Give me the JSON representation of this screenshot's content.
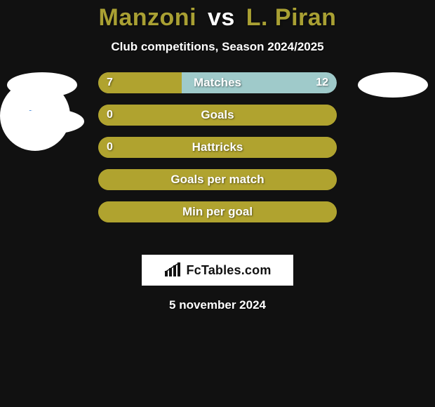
{
  "title": {
    "player1": "Manzoni",
    "vs": "vs",
    "player2": "L. Piran",
    "player1_color": "#a9a033",
    "player2_color": "#a9a033"
  },
  "subtitle": "Club competitions, Season 2024/2025",
  "colors": {
    "background": "#111111",
    "bar_fill": "#b0a32f",
    "bar_empty": "#97c6c6",
    "bar_empty_alt": "#b0a32f",
    "text": "#ffffff"
  },
  "bars": [
    {
      "label": "Matches",
      "left_value": "7",
      "right_value": "12",
      "left_pct": 35,
      "right_pct": 65,
      "left_color": "#b0a32f",
      "right_color": "#9fcaca",
      "show_left": true,
      "show_right": true
    },
    {
      "label": "Goals",
      "left_value": "0",
      "right_value": "",
      "left_pct": 100,
      "right_pct": 0,
      "left_color": "#b0a32f",
      "right_color": "#b0a32f",
      "show_left": true,
      "show_right": false
    },
    {
      "label": "Hattricks",
      "left_value": "0",
      "right_value": "",
      "left_pct": 100,
      "right_pct": 0,
      "left_color": "#b0a32f",
      "right_color": "#b0a32f",
      "show_left": true,
      "show_right": false
    },
    {
      "label": "Goals per match",
      "left_value": "",
      "right_value": "",
      "left_pct": 100,
      "right_pct": 0,
      "left_color": "#b0a32f",
      "right_color": "#b0a32f",
      "show_left": false,
      "show_right": false
    },
    {
      "label": "Min per goal",
      "left_value": "",
      "right_value": "",
      "left_pct": 100,
      "right_pct": 0,
      "left_color": "#b0a32f",
      "right_color": "#b0a32f",
      "show_left": false,
      "show_right": false
    }
  ],
  "badges": {
    "right_circle_mark": "?"
  },
  "brand": "FcTables.com",
  "date": "5 november 2024"
}
